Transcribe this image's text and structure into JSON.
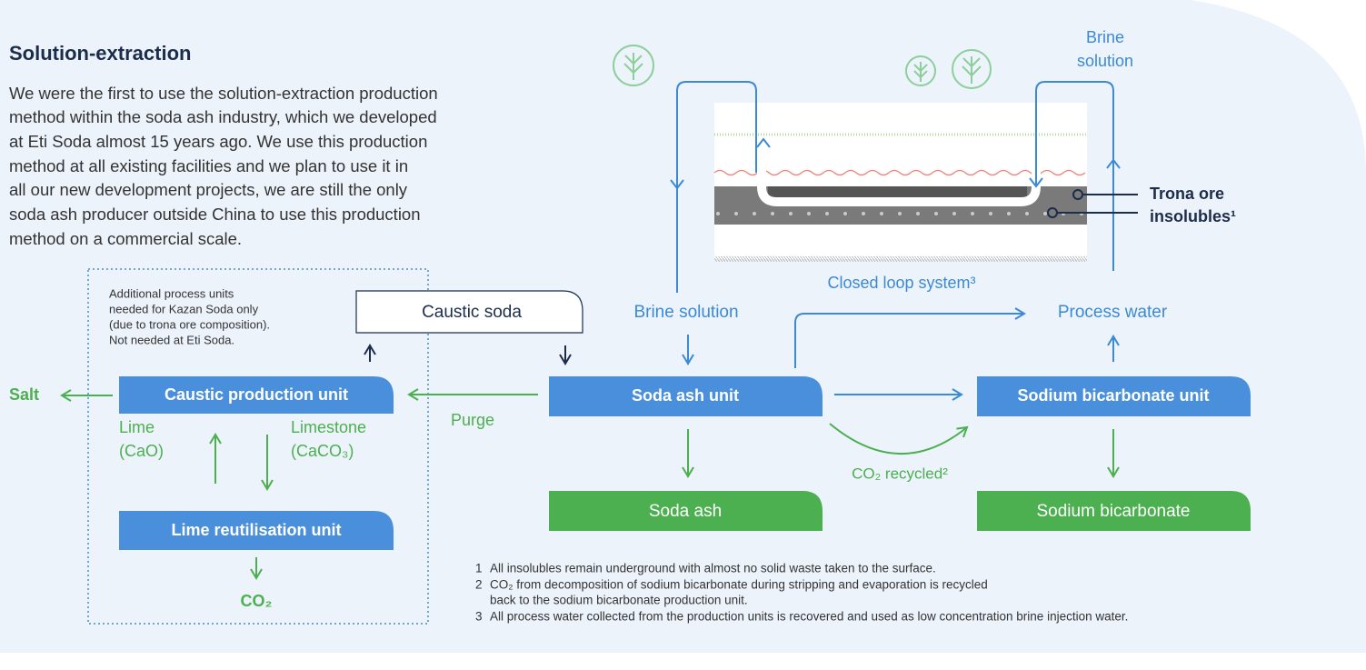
{
  "header": {
    "title": "Solution-extraction"
  },
  "intro": {
    "lines": [
      "We were the first to use the solution-extraction production",
      "method within the soda ash industry, which we developed",
      "at Eti Soda almost 15 years ago. We use this production",
      "method at all existing facilities and we plan to use it in",
      "all our new development projects, we are still the only",
      "soda ash producer outside China to use this production",
      "method on a commercial scale."
    ]
  },
  "note": {
    "lines": [
      "Additional process units",
      "needed for Kazan Soda only",
      "(due to trona ore composition).",
      "Not needed at Eti Soda."
    ]
  },
  "units": {
    "caustic_soda": "Caustic soda",
    "caustic_production": "Caustic production unit",
    "lime_reutilisation": "Lime reutilisation unit",
    "soda_ash_unit": "Soda ash unit",
    "sodium_bicarbonate_unit": "Sodium bicarbonate unit",
    "soda_ash": "Soda ash",
    "sodium_bicarbonate": "Sodium bicarbonate"
  },
  "labels": {
    "salt": "Salt",
    "purge": "Purge",
    "lime": [
      "Lime",
      "(CaO)"
    ],
    "limestone": [
      "Limestone",
      "(CaCO₃)"
    ],
    "co2": "CO₂",
    "brine_left": "Brine solution",
    "brine_top": [
      "Brine",
      "solution"
    ],
    "process_water": "Process water",
    "closed_loop": "Closed loop system³",
    "co2_recycled": "CO₂ recycled²",
    "trona": [
      "Trona ore",
      "insolubles¹"
    ]
  },
  "footnotes": [
    {
      "number": "1",
      "lines": [
        "All insolubles remain underground with almost no solid waste taken to the surface."
      ]
    },
    {
      "number": "2",
      "lines": [
        "CO₂ from decomposition of sodium bicarbonate during stripping and evaporation is recycled",
        "back to the sodium bicarbonate production unit."
      ]
    },
    {
      "number": "3",
      "lines": [
        "All process water collected from the production units is recovered and used as low concentration brine injection water."
      ]
    }
  ]
}
